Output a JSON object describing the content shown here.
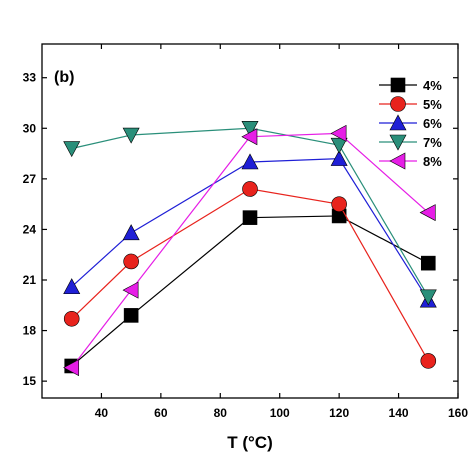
{
  "chart_data": {
    "type": "line",
    "panel_label": "(b)",
    "xlabel": "T (°C)",
    "ylabel": "",
    "xlim": [
      20,
      160
    ],
    "ylim": [
      14,
      35
    ],
    "xticks": [
      40,
      60,
      80,
      100,
      120,
      140,
      160
    ],
    "yticks": [
      15,
      18,
      21,
      24,
      27,
      30,
      33
    ],
    "legend_position": "top-right",
    "grid": false,
    "x": [
      30,
      50,
      90,
      120,
      150
    ],
    "series": [
      {
        "name": "4%",
        "marker": "square",
        "color": "#000000",
        "values": [
          15.9,
          18.9,
          24.7,
          24.8,
          22.0
        ]
      },
      {
        "name": "5%",
        "marker": "circle",
        "color": "#e8231d",
        "values": [
          18.7,
          22.1,
          26.4,
          25.5,
          16.2
        ]
      },
      {
        "name": "6%",
        "marker": "triangle-up",
        "color": "#1f1fd6",
        "values": [
          20.6,
          23.8,
          28.0,
          28.2,
          19.8
        ]
      },
      {
        "name": "7%",
        "marker": "triangle-down",
        "color": "#2a8f7a",
        "values": [
          28.8,
          29.6,
          30.0,
          29.0,
          20.0
        ]
      },
      {
        "name": "8%",
        "marker": "triangle-left",
        "color": "#e61ee6",
        "values": [
          15.8,
          20.4,
          29.5,
          29.7,
          25.0
        ]
      }
    ]
  }
}
